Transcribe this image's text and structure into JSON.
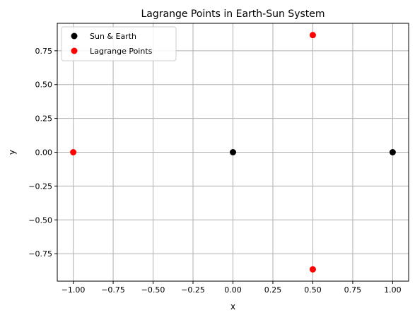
{
  "chart_data": {
    "type": "scatter",
    "title": "Lagrange Points in Earth-Sun System",
    "xlabel": "x",
    "ylabel": "y",
    "xlim": [
      -1.1,
      1.1
    ],
    "ylim": [
      -0.953,
      0.953
    ],
    "grid": true,
    "legend_position": "upper-left",
    "x_ticks": [
      -1.0,
      -0.75,
      -0.5,
      -0.25,
      0.0,
      0.25,
      0.5,
      0.75,
      1.0
    ],
    "x_tick_labels": [
      "−1.00",
      "−0.75",
      "−0.50",
      "−0.25",
      "0.00",
      "0.25",
      "0.50",
      "0.75",
      "1.00"
    ],
    "y_ticks": [
      -0.75,
      -0.5,
      -0.25,
      0.0,
      0.25,
      0.5,
      0.75
    ],
    "y_tick_labels": [
      "−0.75",
      "−0.50",
      "−0.25",
      "0.00",
      "0.25",
      "0.50",
      "0.75"
    ],
    "series": [
      {
        "name": "Sun & Earth",
        "color": "#000000",
        "points": [
          [
            0.0,
            0.0
          ],
          [
            1.0,
            0.0
          ]
        ]
      },
      {
        "name": "Lagrange Points",
        "color": "#ff0000",
        "points": [
          [
            -1.0,
            0.0
          ],
          [
            0.5,
            0.866
          ],
          [
            0.5,
            -0.866
          ]
        ]
      }
    ]
  }
}
